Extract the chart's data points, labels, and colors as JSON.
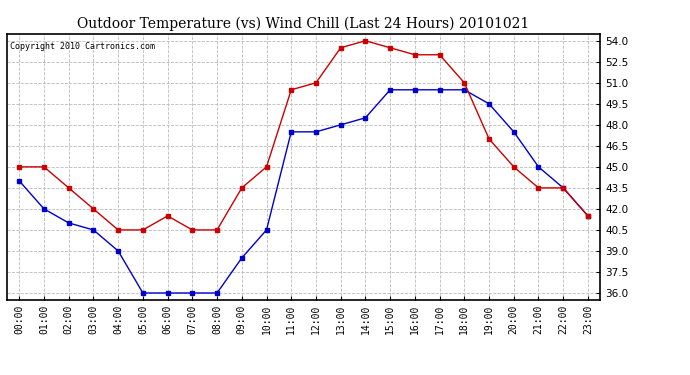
{
  "title": "Outdoor Temperature (vs) Wind Chill (Last 24 Hours) 20101021",
  "copyright": "Copyright 2010 Cartronics.com",
  "hours": [
    "00:00",
    "01:00",
    "02:00",
    "03:00",
    "04:00",
    "05:00",
    "06:00",
    "07:00",
    "08:00",
    "09:00",
    "10:00",
    "11:00",
    "12:00",
    "13:00",
    "14:00",
    "15:00",
    "16:00",
    "17:00",
    "18:00",
    "19:00",
    "20:00",
    "21:00",
    "22:00",
    "23:00"
  ],
  "temp": [
    44.0,
    42.0,
    41.0,
    40.5,
    39.0,
    36.0,
    36.0,
    36.0,
    36.0,
    38.5,
    40.5,
    47.5,
    47.5,
    48.0,
    48.5,
    50.5,
    50.5,
    50.5,
    50.5,
    49.5,
    47.5,
    45.0,
    43.5,
    41.5
  ],
  "wind_chill": [
    45.0,
    45.0,
    43.5,
    42.0,
    40.5,
    40.5,
    41.5,
    40.5,
    40.5,
    43.5,
    45.0,
    50.5,
    51.0,
    53.5,
    54.0,
    53.5,
    53.0,
    53.0,
    51.0,
    47.0,
    45.0,
    43.5,
    43.5,
    41.5
  ],
  "temp_color": "#0000cc",
  "wc_color": "#cc0000",
  "bg_color": "#ffffff",
  "grid_color": "#bbbbbb",
  "ylim_min": 35.5,
  "ylim_max": 54.5,
  "yticks": [
    36.0,
    37.5,
    39.0,
    40.5,
    42.0,
    43.5,
    45.0,
    46.5,
    48.0,
    49.5,
    51.0,
    52.5,
    54.0
  ]
}
